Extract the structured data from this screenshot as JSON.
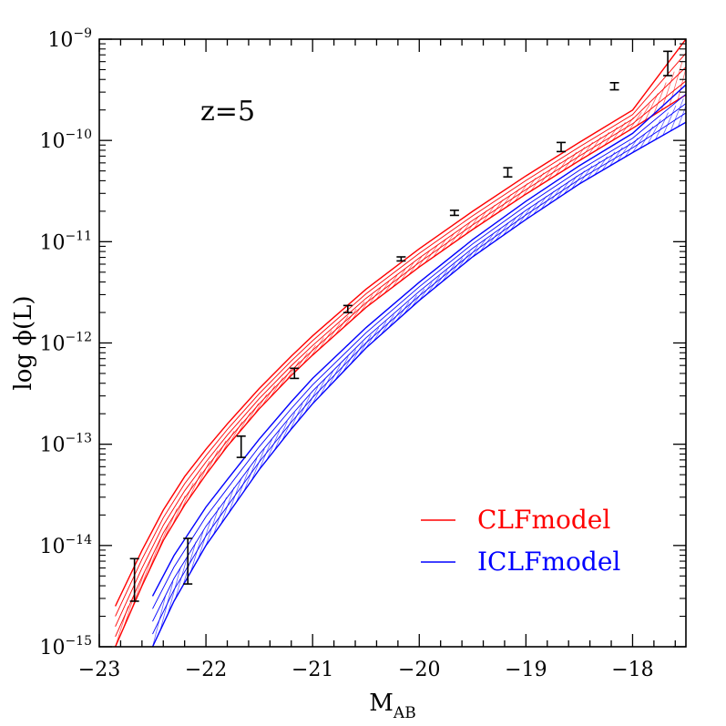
{
  "chart_data": {
    "type": "line",
    "annotation": "z=5",
    "xlabel_main": "M",
    "xlabel_sub": "AB",
    "ylabel": "log  ϕ(L)",
    "x_range": [
      -23,
      -17.5
    ],
    "y_range_log10": [
      -15,
      -9
    ],
    "x_ticks": [
      {
        "value": -23,
        "label": "−23"
      },
      {
        "value": -22,
        "label": "−22"
      },
      {
        "value": -21,
        "label": "−21"
      },
      {
        "value": -20,
        "label": "−20"
      },
      {
        "value": -19,
        "label": "−19"
      },
      {
        "value": -18,
        "label": "−18"
      }
    ],
    "y_ticks": [
      {
        "value": -15,
        "base": "10",
        "exp": "−15"
      },
      {
        "value": -14,
        "base": "10",
        "exp": "−14"
      },
      {
        "value": -13,
        "base": "10",
        "exp": "−13"
      },
      {
        "value": -12,
        "base": "10",
        "exp": "−12"
      },
      {
        "value": -11,
        "base": "10",
        "exp": "−11"
      },
      {
        "value": -10,
        "base": "10",
        "exp": "−10"
      },
      {
        "value": -9,
        "base": "10",
        "exp": "−9"
      }
    ],
    "series": [
      {
        "name": "CLFmodel",
        "color": "#ff0000",
        "x": [
          -22.85,
          -22.6,
          -22.4,
          -22.2,
          -22.0,
          -21.8,
          -21.5,
          -21.2,
          -21.0,
          -20.5,
          -20.0,
          -19.5,
          -19.0,
          -18.5,
          -18.0,
          -17.5
        ],
        "log_phi_lower": [
          -15.0,
          -14.4,
          -13.95,
          -13.6,
          -13.3,
          -13.02,
          -12.65,
          -12.32,
          -12.12,
          -11.65,
          -11.25,
          -10.88,
          -10.53,
          -10.2,
          -9.88,
          -9.55
        ],
        "log_phi_upper": [
          -14.6,
          -14.05,
          -13.65,
          -13.32,
          -13.05,
          -12.8,
          -12.45,
          -12.13,
          -11.93,
          -11.47,
          -11.07,
          -10.7,
          -10.35,
          -10.02,
          -9.7,
          -9.0
        ]
      },
      {
        "name": "ICLFmodel",
        "color": "#0000ff",
        "x": [
          -22.5,
          -22.3,
          -22.0,
          -21.8,
          -21.5,
          -21.2,
          -21.0,
          -20.5,
          -20.0,
          -19.5,
          -19.0,
          -18.5,
          -18.0,
          -17.5
        ],
        "log_phi_lower": [
          -15.0,
          -14.55,
          -14.0,
          -13.7,
          -13.25,
          -12.85,
          -12.6,
          -12.05,
          -11.58,
          -11.15,
          -10.78,
          -10.43,
          -10.12,
          -9.82
        ],
        "log_phi_upper": [
          -14.5,
          -14.1,
          -13.62,
          -13.35,
          -12.95,
          -12.58,
          -12.35,
          -11.85,
          -11.4,
          -10.98,
          -10.6,
          -10.25,
          -9.93,
          -9.45
        ]
      }
    ],
    "data_points": {
      "color": "#000000",
      "x": [
        -22.67,
        -22.17,
        -21.67,
        -21.17,
        -20.67,
        -20.17,
        -19.67,
        -19.17,
        -18.67,
        -18.17,
        -17.67
      ],
      "log_phi": [
        -14.65,
        -14.15,
        -13.03,
        -12.3,
        -11.67,
        -11.17,
        -10.72,
        -10.32,
        -10.06,
        -9.47,
        -9.25
      ],
      "log_err_lo": [
        -14.55,
        -14.38,
        -13.13,
        -12.35,
        -11.7,
        -11.19,
        -10.74,
        -10.36,
        -10.11,
        -9.5,
        -9.36
      ],
      "log_err_hi": [
        -14.13,
        -13.93,
        -12.92,
        -12.25,
        -11.63,
        -11.15,
        -10.69,
        -10.27,
        -10.02,
        -9.43,
        -9.12
      ]
    },
    "legend": {
      "position": "bottom-right",
      "entries": [
        {
          "label": "CLFmodel",
          "color": "#ff0000"
        },
        {
          "label": "ICLFmodel",
          "color": "#0000ff"
        }
      ]
    },
    "grid": false
  }
}
